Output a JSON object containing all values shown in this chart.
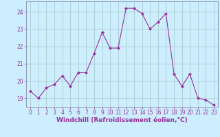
{
  "x": [
    0,
    1,
    2,
    3,
    4,
    5,
    6,
    7,
    8,
    9,
    10,
    11,
    12,
    13,
    14,
    15,
    16,
    17,
    18,
    19,
    20,
    21,
    22,
    23
  ],
  "y": [
    19.4,
    19.0,
    19.6,
    19.8,
    20.3,
    19.7,
    20.5,
    20.5,
    21.6,
    22.8,
    21.9,
    21.9,
    24.2,
    24.2,
    23.9,
    23.0,
    23.4,
    23.9,
    20.4,
    19.7,
    20.4,
    19.0,
    18.9,
    18.6
  ],
  "line_color": "#993399",
  "marker": "D",
  "marker_size": 2,
  "bg_color": "#cceeff",
  "grid_color": "#aacccc",
  "label_color": "#993399",
  "xlabel": "Windchill (Refroidissement éolien,°C)",
  "ylim": [
    18.5,
    24.6
  ],
  "xlim": [
    -0.5,
    23.5
  ],
  "yticks": [
    19,
    20,
    21,
    22,
    23,
    24
  ],
  "xticks": [
    0,
    1,
    2,
    3,
    4,
    5,
    6,
    7,
    8,
    9,
    10,
    11,
    12,
    13,
    14,
    15,
    16,
    17,
    18,
    19,
    20,
    21,
    22,
    23
  ],
  "tick_fontsize": 5.5,
  "xlabel_fontsize": 6.5
}
